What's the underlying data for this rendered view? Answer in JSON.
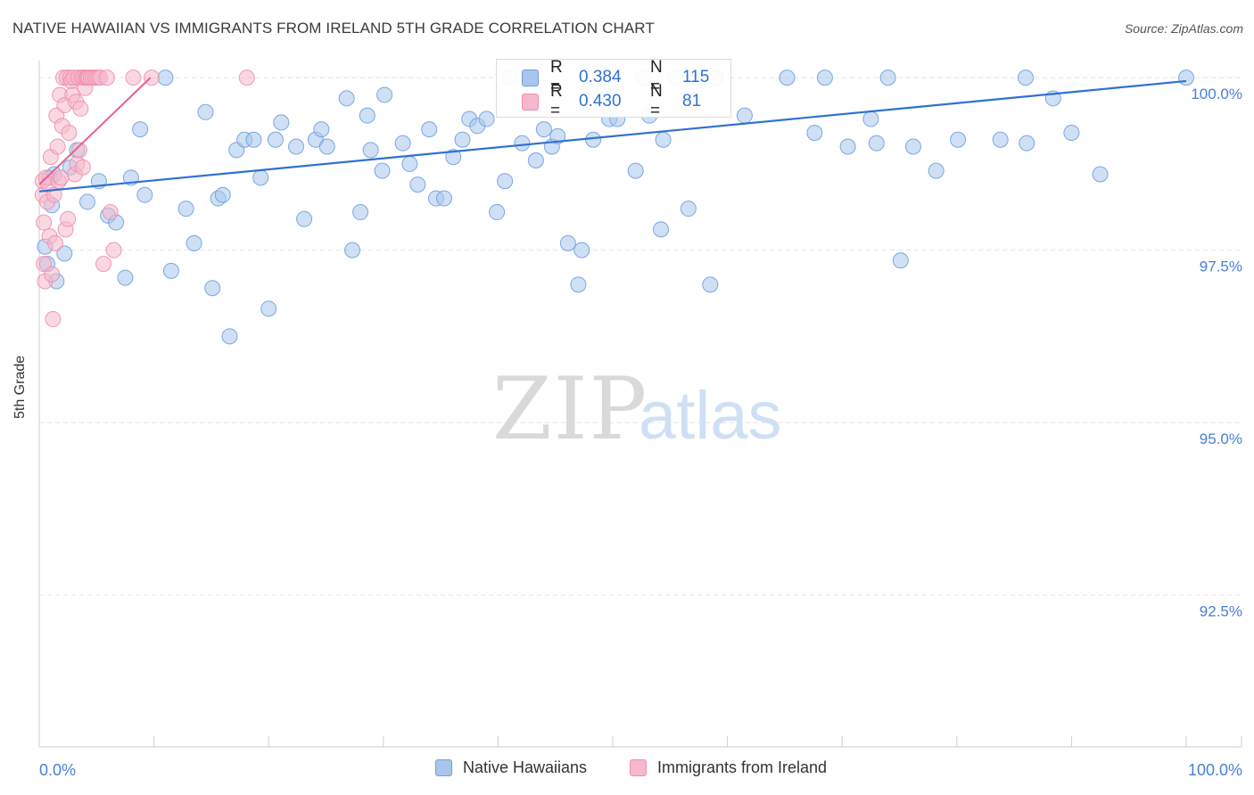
{
  "header": {
    "title": "NATIVE HAWAIIAN VS IMMIGRANTS FROM IRELAND 5TH GRADE CORRELATION CHART",
    "source": "Source: ZipAtlas.com"
  },
  "watermark": {
    "zip": "ZIP",
    "atlas": "atlas"
  },
  "legend_stats": [
    {
      "r_label": "R =",
      "r_value": "0.384",
      "n_label": "N =",
      "n_value": "115"
    },
    {
      "r_label": "R =",
      "r_value": "0.430",
      "n_label": "N =",
      "n_value": "81"
    }
  ],
  "colors": {
    "blue_fill": "#a8c6ec",
    "blue_stroke": "#6f9ee0",
    "blue_line": "#2f72d0",
    "pink_fill": "#f6b8cb",
    "pink_stroke": "#ee8fac",
    "pink_line": "#e8608a",
    "axis_text": "#4a7fd4",
    "grid": "#e3e3e3"
  },
  "chart_data": {
    "type": "scatter",
    "title": "NATIVE HAWAIIAN VS IMMIGRANTS FROM IRELAND 5TH GRADE CORRELATION CHART",
    "xlabel": "",
    "ylabel": "5th Grade",
    "xlim": [
      0,
      100
    ],
    "ylim": [
      90.3,
      100.35
    ],
    "x_tick_labels": [
      "0.0%",
      "100.0%"
    ],
    "y_ticks": [
      100.0,
      97.5,
      95.0,
      92.5
    ],
    "y_tick_labels": [
      "100.0%",
      "97.5%",
      "95.0%",
      "92.5%"
    ],
    "grid": true,
    "legend_position": "bottom-center",
    "series": [
      {
        "name": "Native Hawaiians",
        "color": "blue",
        "R": 0.384,
        "N": 115,
        "trend": {
          "x": [
            0,
            100
          ],
          "y": [
            98.35,
            99.95
          ]
        },
        "points": [
          [
            0.5,
            97.55
          ],
          [
            0.7,
            97.3
          ],
          [
            0.9,
            98.55
          ],
          [
            1.1,
            98.15
          ],
          [
            1.3,
            98.6
          ],
          [
            1.5,
            97.05
          ],
          [
            2.2,
            97.45
          ],
          [
            2.7,
            98.7
          ],
          [
            3.3,
            98.95
          ],
          [
            4.2,
            98.2
          ],
          [
            5.2,
            98.5
          ],
          [
            6.0,
            98.0
          ],
          [
            6.7,
            97.9
          ],
          [
            7.5,
            97.1
          ],
          [
            8.0,
            98.55
          ],
          [
            8.8,
            99.25
          ],
          [
            9.2,
            98.3
          ],
          [
            11.0,
            100.0
          ],
          [
            11.5,
            97.2
          ],
          [
            12.8,
            98.1
          ],
          [
            13.5,
            97.6
          ],
          [
            14.5,
            99.5
          ],
          [
            15.1,
            96.95
          ],
          [
            15.6,
            98.25
          ],
          [
            16.0,
            98.3
          ],
          [
            16.6,
            96.25
          ],
          [
            17.2,
            98.95
          ],
          [
            17.9,
            99.1
          ],
          [
            18.7,
            99.1
          ],
          [
            19.3,
            98.55
          ],
          [
            20.0,
            96.65
          ],
          [
            20.6,
            99.1
          ],
          [
            21.1,
            99.35
          ],
          [
            22.4,
            99.0
          ],
          [
            23.1,
            97.95
          ],
          [
            24.1,
            99.1
          ],
          [
            24.6,
            99.25
          ],
          [
            25.1,
            99.0
          ],
          [
            26.8,
            99.7
          ],
          [
            27.3,
            97.5
          ],
          [
            28.0,
            98.05
          ],
          [
            28.6,
            99.45
          ],
          [
            28.9,
            98.95
          ],
          [
            29.9,
            98.65
          ],
          [
            30.1,
            99.75
          ],
          [
            31.7,
            99.05
          ],
          [
            32.3,
            98.75
          ],
          [
            33.0,
            98.45
          ],
          [
            34.0,
            99.25
          ],
          [
            34.6,
            98.25
          ],
          [
            35.3,
            98.25
          ],
          [
            36.1,
            98.85
          ],
          [
            36.9,
            99.1
          ],
          [
            37.5,
            99.4
          ],
          [
            38.2,
            99.3
          ],
          [
            39.0,
            99.4
          ],
          [
            39.9,
            98.05
          ],
          [
            40.6,
            98.5
          ],
          [
            41.0,
            100.0
          ],
          [
            42.1,
            99.05
          ],
          [
            43.3,
            98.8
          ],
          [
            44.0,
            99.25
          ],
          [
            44.7,
            99.0
          ],
          [
            45.2,
            99.15
          ],
          [
            46.1,
            97.6
          ],
          [
            47.0,
            97.0
          ],
          [
            47.3,
            97.5
          ],
          [
            48.3,
            99.1
          ],
          [
            49.2,
            99.8
          ],
          [
            49.7,
            99.4
          ],
          [
            50.4,
            99.4
          ],
          [
            52.0,
            98.65
          ],
          [
            52.7,
            100.0
          ],
          [
            53.2,
            99.45
          ],
          [
            54.2,
            97.8
          ],
          [
            54.4,
            99.1
          ],
          [
            55.5,
            100.0
          ],
          [
            56.6,
            98.1
          ],
          [
            57.2,
            100.0
          ],
          [
            58.5,
            97.0
          ],
          [
            59.0,
            100.0
          ],
          [
            61.5,
            99.45
          ],
          [
            65.2,
            100.0
          ],
          [
            67.6,
            99.2
          ],
          [
            68.5,
            100.0
          ],
          [
            70.5,
            99.0
          ],
          [
            72.5,
            99.4
          ],
          [
            73.0,
            99.05
          ],
          [
            74.0,
            100.0
          ],
          [
            75.1,
            97.35
          ],
          [
            76.2,
            99.0
          ],
          [
            78.2,
            98.65
          ],
          [
            80.1,
            99.1
          ],
          [
            83.8,
            99.1
          ],
          [
            86.0,
            100.0
          ],
          [
            86.1,
            99.05
          ],
          [
            88.4,
            99.7
          ],
          [
            90.0,
            99.2
          ],
          [
            92.5,
            98.6
          ],
          [
            100.0,
            100.0
          ]
        ]
      },
      {
        "name": "Immigrants from Ireland",
        "color": "pink",
        "R": 0.43,
        "N": 81,
        "trend": {
          "x": [
            0,
            9.7
          ],
          "y": [
            98.45,
            100.0
          ]
        },
        "points": [
          [
            0.3,
            98.5
          ],
          [
            0.3,
            98.3
          ],
          [
            0.4,
            97.9
          ],
          [
            0.4,
            97.3
          ],
          [
            0.5,
            97.05
          ],
          [
            0.6,
            98.55
          ],
          [
            0.7,
            98.2
          ],
          [
            0.8,
            98.45
          ],
          [
            0.9,
            97.7
          ],
          [
            1.0,
            98.85
          ],
          [
            1.1,
            97.15
          ],
          [
            1.2,
            96.5
          ],
          [
            1.3,
            98.3
          ],
          [
            1.4,
            97.6
          ],
          [
            1.5,
            99.45
          ],
          [
            1.6,
            99.0
          ],
          [
            1.7,
            98.5
          ],
          [
            1.8,
            99.75
          ],
          [
            1.9,
            98.55
          ],
          [
            2.0,
            99.3
          ],
          [
            2.1,
            100.0
          ],
          [
            2.2,
            99.6
          ],
          [
            2.3,
            97.8
          ],
          [
            2.4,
            100.0
          ],
          [
            2.5,
            97.95
          ],
          [
            2.6,
            99.2
          ],
          [
            2.7,
            100.0
          ],
          [
            2.8,
            99.95
          ],
          [
            2.9,
            99.75
          ],
          [
            3.0,
            100.0
          ],
          [
            3.1,
            98.6
          ],
          [
            3.2,
            99.65
          ],
          [
            3.3,
            98.75
          ],
          [
            3.4,
            100.0
          ],
          [
            3.5,
            98.95
          ],
          [
            3.6,
            99.55
          ],
          [
            3.7,
            100.0
          ],
          [
            3.8,
            98.7
          ],
          [
            3.9,
            100.0
          ],
          [
            4.0,
            99.85
          ],
          [
            4.1,
            100.0
          ],
          [
            4.2,
            100.0
          ],
          [
            4.3,
            100.0
          ],
          [
            4.5,
            100.0
          ],
          [
            4.7,
            100.0
          ],
          [
            4.9,
            100.0
          ],
          [
            5.1,
            100.0
          ],
          [
            5.3,
            100.0
          ],
          [
            5.6,
            97.3
          ],
          [
            5.9,
            100.0
          ],
          [
            6.2,
            98.05
          ],
          [
            6.5,
            97.5
          ],
          [
            8.2,
            100.0
          ],
          [
            9.8,
            100.0
          ],
          [
            18.1,
            100.0
          ]
        ]
      }
    ]
  },
  "legend": {
    "items": [
      {
        "label": "Native Hawaiians",
        "color": "blue"
      },
      {
        "label": "Immigrants from Ireland",
        "color": "pink"
      }
    ]
  }
}
